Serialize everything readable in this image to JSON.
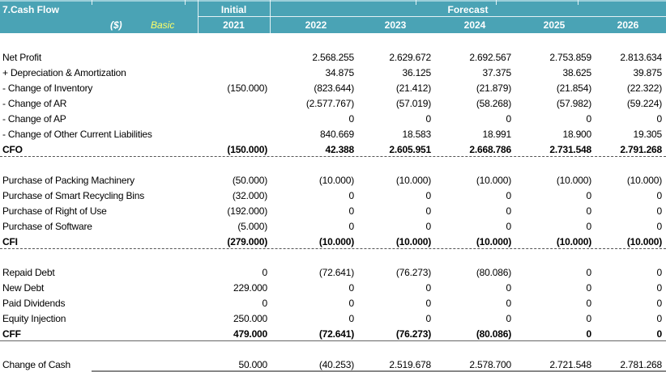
{
  "header": {
    "title": "7.Cash Flow",
    "currency": "($)",
    "scenario": "Basic",
    "initial_label": "Initial",
    "forecast_label": "Forecast",
    "years": [
      "2021",
      "2022",
      "2023",
      "2024",
      "2025",
      "2026"
    ]
  },
  "colors": {
    "header_bg": "#4aa3b5",
    "scenario_text": "#ffff66"
  },
  "cfo": {
    "rows": [
      {
        "label": "Net Profit",
        "values": [
          "",
          "2.568.255",
          "2.629.672",
          "2.692.567",
          "2.753.859",
          "2.813.634"
        ]
      },
      {
        "label": " + Depreciation & Amortization",
        "values": [
          "",
          "34.875",
          "36.125",
          "37.375",
          "38.625",
          "39.875"
        ]
      },
      {
        "label": " - Change of Inventory",
        "values": [
          "(150.000)",
          "(823.644)",
          "(21.412)",
          "(21.879)",
          "(21.854)",
          "(22.322)"
        ]
      },
      {
        "label": " - Change of AR",
        "values": [
          "",
          "(2.577.767)",
          "(57.019)",
          "(58.268)",
          "(57.982)",
          "(59.224)"
        ]
      },
      {
        "label": " - Change of AP",
        "values": [
          "",
          "0",
          "0",
          "0",
          "0",
          "0"
        ]
      },
      {
        "label": " - Change of Other Current Liabilities",
        "values": [
          "",
          "840.669",
          "18.583",
          "18.991",
          "18.900",
          "19.305"
        ]
      }
    ],
    "total": {
      "label": "CFO",
      "values": [
        "(150.000)",
        "42.388",
        "2.605.951",
        "2.668.786",
        "2.731.548",
        "2.791.268"
      ]
    }
  },
  "cfi": {
    "rows": [
      {
        "label": "Purchase of Packing Machinery",
        "values": [
          "(50.000)",
          "(10.000)",
          "(10.000)",
          "(10.000)",
          "(10.000)",
          "(10.000)"
        ]
      },
      {
        "label": "Purchase of Smart Recycling Bins",
        "values": [
          "(32.000)",
          "0",
          "0",
          "0",
          "0",
          "0"
        ]
      },
      {
        "label": "Purchase of Right of Use",
        "values": [
          "(192.000)",
          "0",
          "0",
          "0",
          "0",
          "0"
        ]
      },
      {
        "label": "Purchase of Software",
        "values": [
          "(5.000)",
          "0",
          "0",
          "0",
          "0",
          "0"
        ]
      }
    ],
    "total": {
      "label": "CFI",
      "values": [
        "(279.000)",
        "(10.000)",
        "(10.000)",
        "(10.000)",
        "(10.000)",
        "(10.000)"
      ]
    }
  },
  "cff": {
    "rows": [
      {
        "label": "Repaid Debt",
        "values": [
          "0",
          "(72.641)",
          "(76.273)",
          "(80.086)",
          "0",
          "0"
        ]
      },
      {
        "label": "New Debt",
        "values": [
          "229.000",
          "0",
          "0",
          "0",
          "0",
          "0"
        ]
      },
      {
        "label": "Paid Dividends",
        "values": [
          "0",
          "0",
          "0",
          "0",
          "0",
          "0"
        ]
      },
      {
        "label": "Equity Injection",
        "values": [
          "250.000",
          "0",
          "0",
          "0",
          "0",
          "0"
        ]
      }
    ],
    "total": {
      "label": "CFF",
      "values": [
        "479.000",
        "(72.641)",
        "(76.273)",
        "(80.086)",
        "0",
        "0"
      ]
    }
  },
  "change_of_cash": {
    "label": "Change of Cash",
    "values": [
      "50.000",
      "(40.253)",
      "2.519.678",
      "2.578.700",
      "2.721.548",
      "2.781.268"
    ]
  }
}
